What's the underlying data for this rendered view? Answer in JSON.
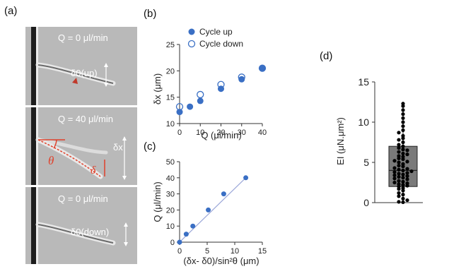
{
  "panels": {
    "a": "(a)",
    "b": "(b)",
    "c": "(c)",
    "d": "(d)"
  },
  "micrographs": [
    {
      "flow_label": "Q = 0 μl/min",
      "delta_label": "δ0(up)"
    },
    {
      "flow_label": "Q = 40 μl/min",
      "delta_label": "δx",
      "theta_label": "θ",
      "delta2_label": "δ"
    },
    {
      "flow_label": "Q = 0 μl/min",
      "delta_label": "δ0(down)"
    }
  ],
  "colors": {
    "marker": "#3a6fc4",
    "fit_line": "#9aa6d8",
    "box_fill": "#7a7a7a",
    "annotation_red": "#e0402a",
    "micrograph_bg": "#b9b9b9"
  },
  "chart_data": [
    {
      "id": "b",
      "type": "scatter",
      "xlabel": "Q (μl/min)",
      "ylabel": "δx (μm)",
      "xlim": [
        0,
        40
      ],
      "ylim": [
        10,
        25
      ],
      "xticks": [
        0,
        10,
        20,
        30,
        40
      ],
      "yticks": [
        10,
        15,
        20,
        25
      ],
      "legend_position": "top",
      "series": [
        {
          "name": "Cycle up",
          "marker": "filled",
          "x": [
            0,
            5,
            10,
            20,
            30,
            40
          ],
          "y": [
            12.2,
            13.2,
            14.3,
            16.6,
            18.4,
            20.5
          ]
        },
        {
          "name": "Cycle down",
          "marker": "open",
          "x": [
            0,
            10,
            20,
            30,
            40
          ],
          "y": [
            13.2,
            15.5,
            17.4,
            18.8,
            20.5
          ]
        }
      ]
    },
    {
      "id": "c",
      "type": "line",
      "xlabel": "(δx- δ0)/sin²θ (μm)",
      "ylabel": "Q (μl/min)",
      "xlim": [
        0,
        15
      ],
      "ylim": [
        0,
        50
      ],
      "xticks": [
        0,
        5,
        10,
        15
      ],
      "yticks": [
        0,
        10,
        20,
        30,
        40,
        50
      ],
      "series": [
        {
          "x": [
            0,
            1.2,
            2.4,
            5.2,
            8.0,
            12.0
          ],
          "y": [
            0,
            5,
            10,
            20,
            30,
            40
          ]
        }
      ],
      "fit_line": {
        "x": [
          0,
          12.0
        ],
        "y": [
          0,
          40
        ]
      }
    },
    {
      "id": "d",
      "type": "box",
      "ylabel": "EI (μN.μm²)",
      "ylim": [
        0,
        15
      ],
      "yticks": [
        0,
        5,
        10,
        15
      ],
      "box": {
        "q1": 2.0,
        "median": 4.0,
        "q3": 7.0,
        "min": 0.0,
        "max": 12.3
      },
      "points": [
        0.05,
        0.1,
        0.3,
        0.5,
        0.8,
        1.0,
        1.2,
        1.5,
        1.7,
        1.8,
        2.0,
        2.1,
        2.2,
        2.3,
        2.4,
        2.5,
        2.6,
        2.7,
        2.9,
        3.0,
        3.1,
        3.2,
        3.3,
        3.4,
        3.5,
        3.6,
        3.7,
        3.8,
        3.9,
        4.0,
        4.1,
        4.2,
        4.3,
        4.5,
        4.6,
        4.8,
        5.0,
        5.1,
        5.2,
        5.4,
        5.5,
        5.7,
        5.8,
        6.0,
        6.1,
        6.3,
        6.5,
        6.6,
        6.8,
        7.0,
        7.2,
        7.5,
        7.8,
        8.0,
        8.3,
        8.7,
        9.0,
        9.5,
        10.0,
        10.5,
        11.0,
        11.5,
        12.0,
        12.3
      ]
    }
  ]
}
